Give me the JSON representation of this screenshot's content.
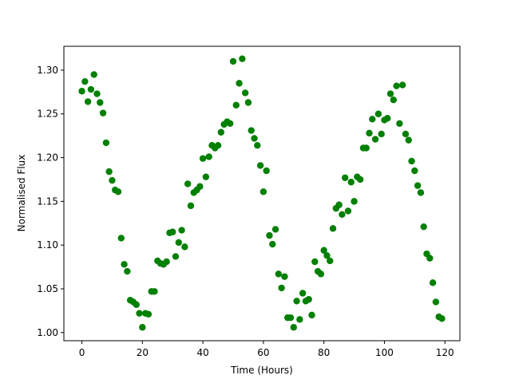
{
  "chart_data": {
    "type": "scatter",
    "x_label": "Time (Hours)",
    "y_label": "Normalised Flux",
    "xlim": [
      -5.95,
      124.95
    ],
    "ylim": [
      0.9907,
      1.3273
    ],
    "xticks": [
      0,
      20,
      40,
      60,
      80,
      100,
      120
    ],
    "yticks": [
      {
        "value": 1.0,
        "label": "1.00"
      },
      1.05,
      {
        "value": 1.1,
        "label": "1.10"
      },
      1.15,
      {
        "value": 1.2,
        "label": "1.20"
      },
      1.25,
      {
        "value": 1.3,
        "label": "1.30"
      }
    ],
    "series": [
      {
        "color": "#008000",
        "x": [
          0,
          1,
          2,
          3,
          4,
          5,
          6,
          7,
          8,
          9,
          10,
          11,
          12,
          13,
          14,
          15,
          16,
          17,
          18,
          19,
          20,
          21,
          22,
          23,
          24,
          25,
          26,
          27,
          28,
          29,
          30,
          31,
          32,
          33,
          34,
          35,
          36,
          37,
          38,
          39,
          40,
          41,
          42,
          43,
          44,
          45,
          46,
          47,
          48,
          49,
          50,
          51,
          52,
          53,
          54,
          55,
          56,
          57,
          58,
          59,
          60,
          61,
          62,
          63,
          64,
          65,
          66,
          67,
          68,
          69,
          70,
          71,
          72,
          73,
          74,
          75,
          76,
          77,
          78,
          79,
          80,
          81,
          82,
          83,
          84,
          85,
          86,
          87,
          88,
          89,
          90,
          91,
          92,
          93,
          94,
          95,
          96,
          97,
          98,
          99,
          100,
          101,
          102,
          103,
          104,
          105,
          106,
          107,
          108,
          109,
          110,
          111,
          112,
          113,
          114,
          115,
          116,
          117,
          118,
          119
        ],
        "values": [
          1.276,
          1.287,
          1.264,
          1.278,
          1.295,
          1.273,
          1.263,
          1.251,
          1.217,
          1.184,
          1.174,
          1.163,
          1.161,
          1.108,
          1.078,
          1.07,
          1.037,
          1.035,
          1.032,
          1.022,
          1.006,
          1.022,
          1.021,
          1.047,
          1.047,
          1.082,
          1.079,
          1.078,
          1.081,
          1.114,
          1.115,
          1.087,
          1.103,
          1.117,
          1.098,
          1.17,
          1.145,
          1.16,
          1.163,
          1.167,
          1.199,
          1.178,
          1.201,
          1.214,
          1.211,
          1.214,
          1.229,
          1.238,
          1.241,
          1.239,
          1.31,
          1.26,
          1.285,
          1.313,
          1.274,
          1.263,
          1.231,
          1.222,
          1.214,
          1.191,
          1.161,
          1.185,
          1.111,
          1.101,
          1.118,
          1.067,
          1.051,
          1.064,
          1.017,
          1.017,
          1.006,
          1.036,
          1.015,
          1.045,
          1.036,
          1.038,
          1.02,
          1.081,
          1.07,
          1.067,
          1.094,
          1.088,
          1.082,
          1.119,
          1.142,
          1.146,
          1.135,
          1.177,
          1.139,
          1.172,
          1.15,
          1.178,
          1.175,
          1.211,
          1.211,
          1.228,
          1.244,
          1.221,
          1.25,
          1.227,
          1.243,
          1.245,
          1.273,
          1.266,
          1.282,
          1.239,
          1.283,
          1.227,
          1.22,
          1.196,
          1.185,
          1.168,
          1.16,
          1.121,
          1.09,
          1.085,
          1.057,
          1.035,
          1.018,
          1.016
        ]
      }
    ]
  }
}
